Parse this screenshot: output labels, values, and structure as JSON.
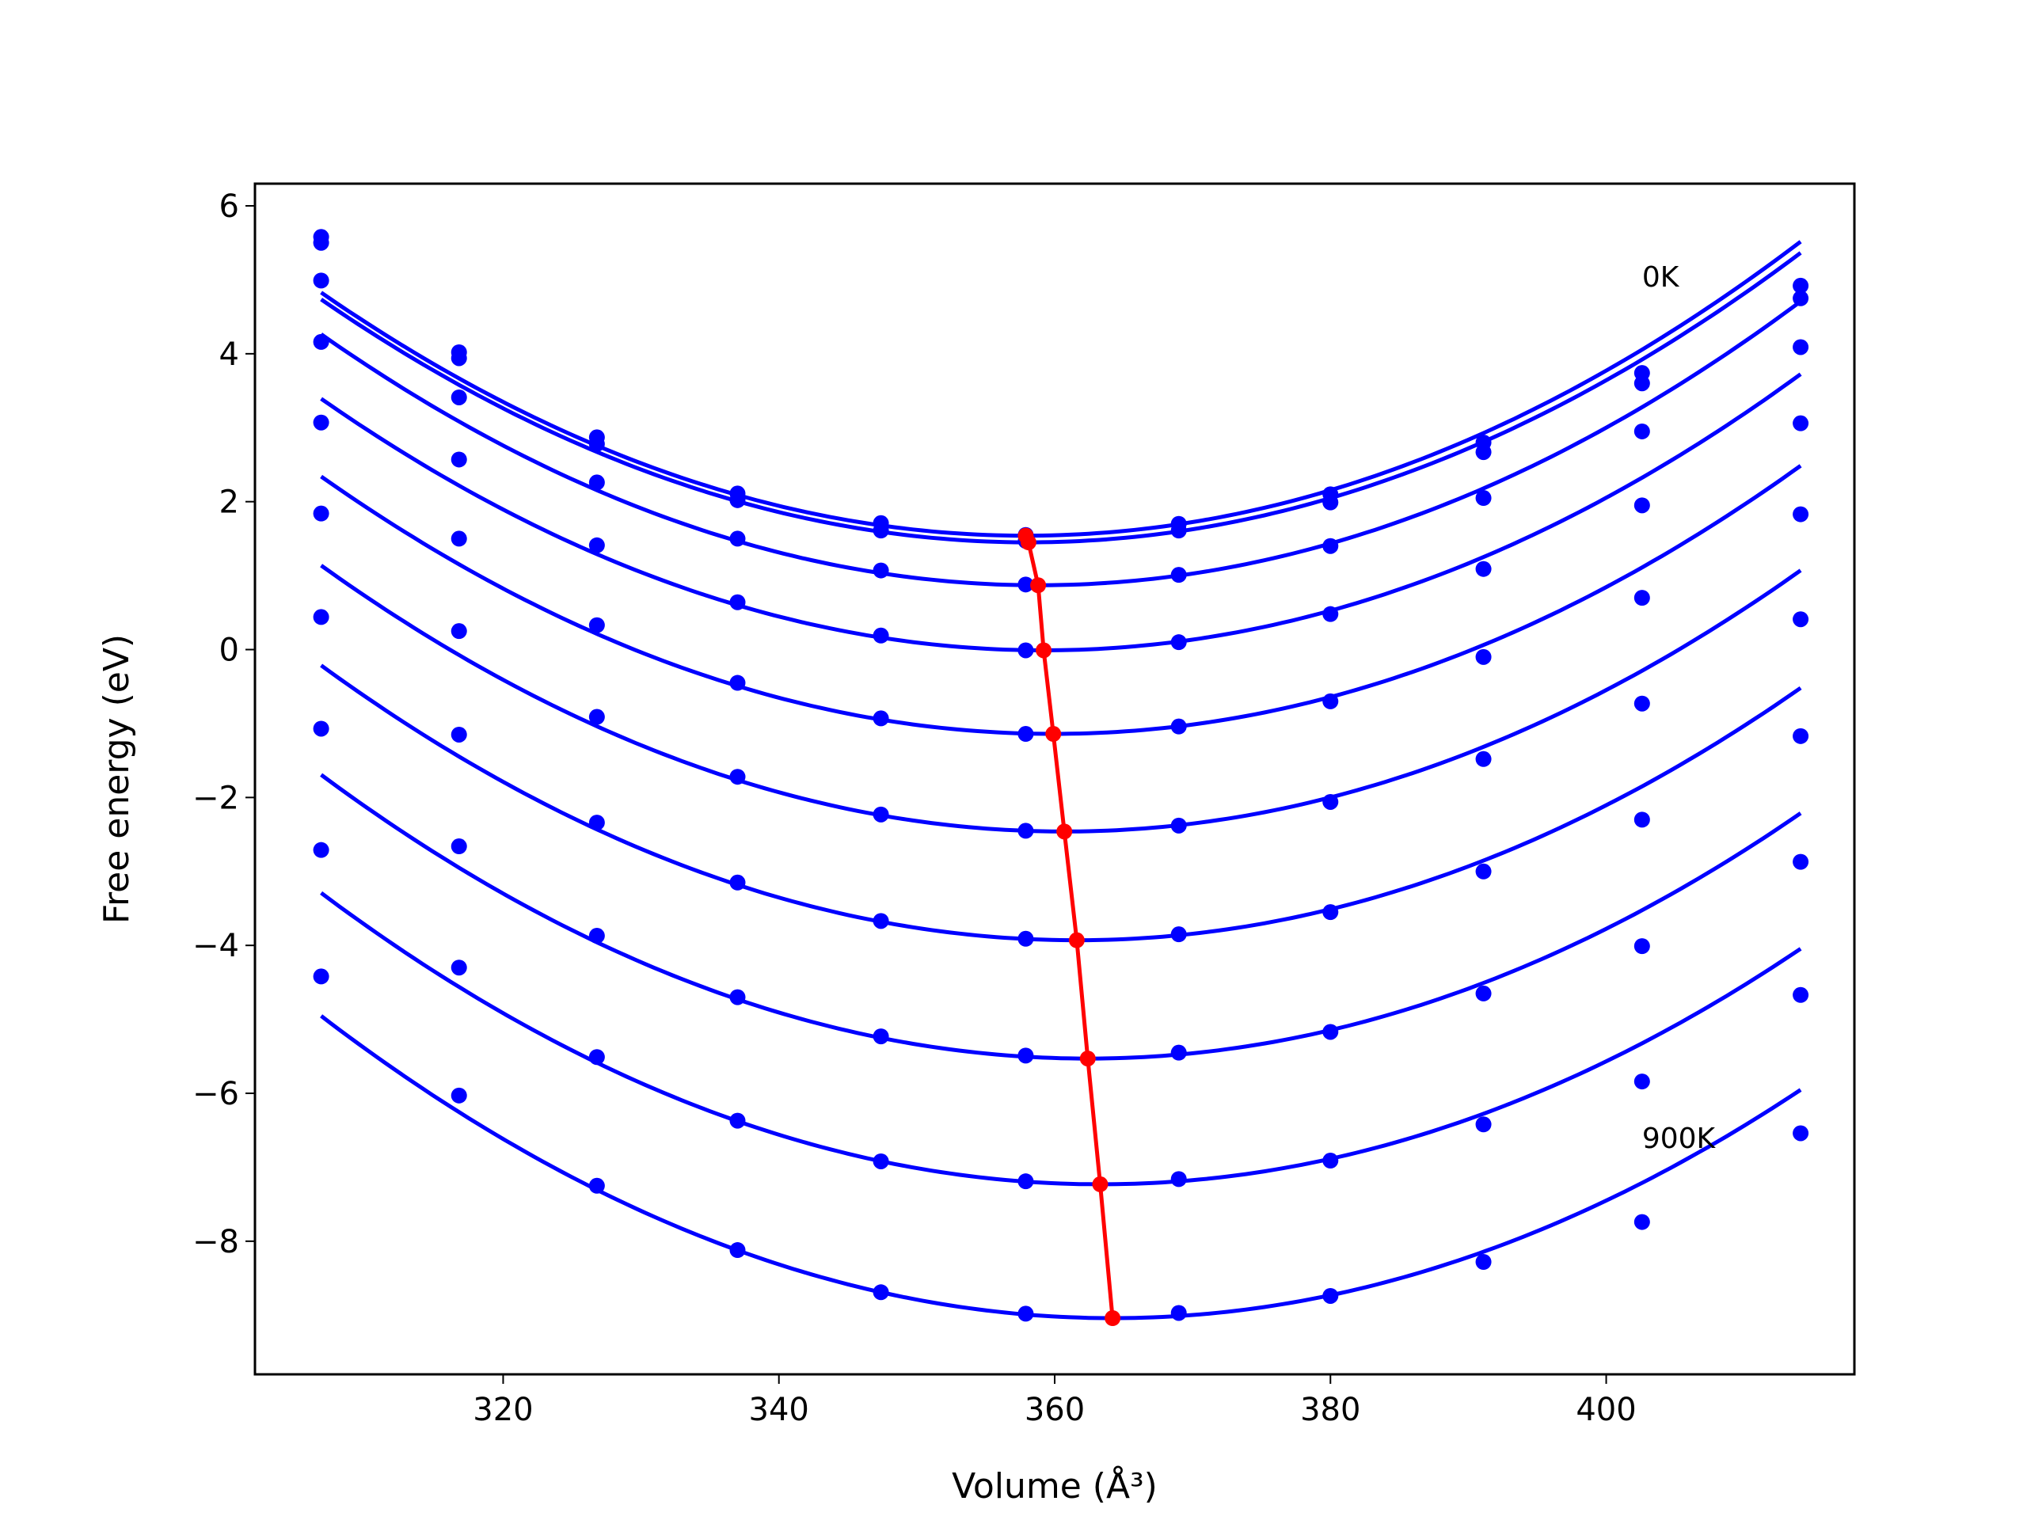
{
  "chart_data": {
    "type": "line",
    "xlabel": "Volume (Å³)",
    "ylabel": "Free energy (eV)",
    "xlim": [
      302,
      418
    ],
    "ylim": [
      -9.8,
      6.3
    ],
    "xticks": [
      320,
      340,
      360,
      380,
      400
    ],
    "yticks": [
      -8,
      -6,
      -4,
      -2,
      0,
      2,
      4,
      6
    ],
    "grid": false,
    "legend": "none",
    "volumes": [
      306.8,
      316.8,
      326.8,
      337.0,
      347.4,
      357.9,
      369.0,
      380.0,
      391.1,
      402.6,
      414.1
    ],
    "series": [
      {
        "values": [
          5.58,
          4.02,
          2.87,
          2.11,
          1.71,
          1.55,
          1.7,
          2.1,
          2.8,
          3.74,
          4.92
        ],
        "fit_min": [
          357.9,
          1.54
        ]
      },
      {
        "values": [
          5.5,
          3.94,
          2.78,
          2.02,
          1.61,
          1.47,
          1.61,
          1.99,
          2.67,
          3.6,
          4.75
        ],
        "fit_min": [
          358.1,
          1.45
        ]
      },
      {
        "values": [
          4.99,
          3.41,
          2.26,
          1.5,
          1.07,
          0.88,
          1.01,
          1.4,
          2.05,
          2.95,
          4.09
        ],
        "fit_min": [
          358.8,
          0.87
        ]
      },
      {
        "values": [
          4.16,
          2.57,
          1.41,
          0.64,
          0.19,
          -0.01,
          0.1,
          0.48,
          1.09,
          1.95,
          3.06
        ],
        "fit_min": [
          359.2,
          -0.01
        ]
      },
      {
        "values": [
          3.07,
          1.5,
          0.33,
          -0.45,
          -0.93,
          -1.14,
          -1.04,
          -0.7,
          -0.1,
          0.7,
          1.83
        ],
        "fit_min": [
          359.9,
          -1.14
        ]
      },
      {
        "values": [
          1.84,
          0.25,
          -0.91,
          -1.72,
          -2.23,
          -2.45,
          -2.38,
          -2.06,
          -1.48,
          -0.73,
          0.41
        ],
        "fit_min": [
          360.7,
          -2.46
        ]
      },
      {
        "values": [
          0.44,
          -1.15,
          -2.34,
          -3.15,
          -3.67,
          -3.91,
          -3.85,
          -3.55,
          -3.0,
          -2.3,
          -1.17
        ],
        "fit_min": [
          361.6,
          -3.93
        ]
      },
      {
        "values": [
          -1.07,
          -2.66,
          -3.87,
          -4.7,
          -5.23,
          -5.49,
          -5.45,
          -5.17,
          -4.65,
          -4.01,
          -2.87
        ],
        "fit_min": [
          362.4,
          -5.53
        ]
      },
      {
        "values": [
          -2.71,
          -4.3,
          -5.51,
          -6.37,
          -6.92,
          -7.19,
          -7.16,
          -6.91,
          -6.42,
          -5.84,
          -4.67
        ],
        "fit_min": [
          363.3,
          -7.23
        ]
      },
      {
        "values": [
          -4.42,
          -6.03,
          -7.25,
          -8.12,
          -8.69,
          -8.98,
          -8.97,
          -8.74,
          -8.28,
          -7.74,
          -6.54
        ],
        "fit_min": [
          364.2,
          -9.04
        ]
      }
    ],
    "min_line": {
      "x": [
        357.9,
        358.1,
        358.8,
        359.2,
        359.9,
        360.7,
        361.6,
        362.4,
        363.3,
        364.2
      ],
      "y": [
        1.54,
        1.45,
        0.87,
        -0.01,
        -1.14,
        -2.46,
        -3.93,
        -5.53,
        -7.23,
        -9.04
      ]
    },
    "annotations": [
      {
        "text": "0K",
        "x": 402.6,
        "y": 5.05
      },
      {
        "text": "900K",
        "x": 402.6,
        "y": -6.6
      }
    ],
    "colors": {
      "series": "#0000ff",
      "min_line": "#ff0000",
      "axes": "#000000"
    }
  }
}
